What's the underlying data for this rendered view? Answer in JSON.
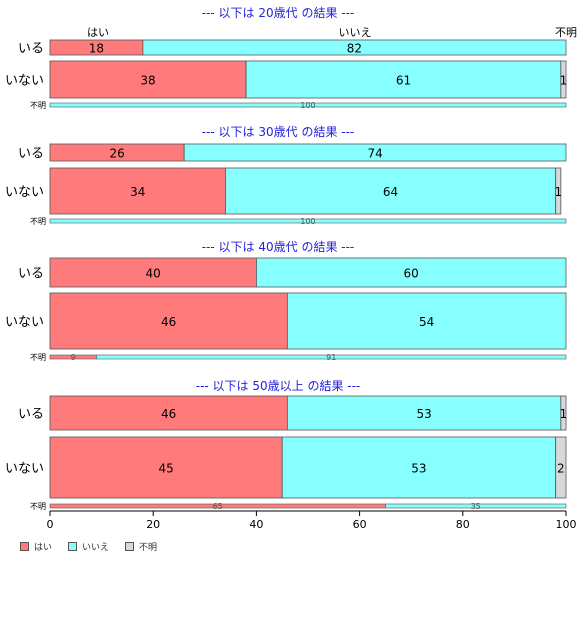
{
  "colors": {
    "yes": "#ff7b7b",
    "no": "#88ffff",
    "unknown": "#d8d8d8",
    "title": "#2222dd"
  },
  "header_labels": [
    "はい",
    "いいえ",
    "不明"
  ],
  "legend": [
    {
      "label": "はい",
      "color": "#ff7b7b"
    },
    {
      "label": "いいえ",
      "color": "#88ffff"
    },
    {
      "label": "不明",
      "color": "#d8d8d8"
    }
  ],
  "chart_data": {
    "type": "bar",
    "orientation": "horizontal-stacked-percent",
    "xlim": [
      0,
      100
    ],
    "xticks": [
      0,
      20,
      40,
      60,
      80,
      100
    ],
    "series_names": [
      "はい",
      "いいえ",
      "不明"
    ],
    "panels": [
      {
        "title": "--- 以下は 20歳代 の結果 ---",
        "rows": [
          {
            "label": "いる",
            "values": [
              18,
              82,
              0
            ]
          },
          {
            "label": "いない",
            "values": [
              38,
              61,
              1
            ]
          },
          {
            "label": "不明",
            "values": [
              0,
              100,
              0
            ]
          }
        ]
      },
      {
        "title": "--- 以下は 30歳代 の結果 ---",
        "rows": [
          {
            "label": "いる",
            "values": [
              26,
              74,
              0
            ]
          },
          {
            "label": "いない",
            "values": [
              34,
              64,
              1
            ]
          },
          {
            "label": "不明",
            "values": [
              0,
              100,
              0
            ]
          }
        ]
      },
      {
        "title": "--- 以下は 40歳代 の結果 ---",
        "rows": [
          {
            "label": "いる",
            "values": [
              40,
              60,
              0
            ]
          },
          {
            "label": "いない",
            "values": [
              46,
              54,
              0
            ]
          },
          {
            "label": "不明",
            "values": [
              9,
              91,
              0
            ]
          }
        ]
      },
      {
        "title": "--- 以下は 50歳以上 の結果 ---",
        "rows": [
          {
            "label": "いる",
            "values": [
              46,
              53,
              1
            ]
          },
          {
            "label": "いない",
            "values": [
              45,
              53,
              2
            ]
          },
          {
            "label": "不明",
            "values": [
              65,
              35,
              0
            ]
          }
        ]
      }
    ]
  }
}
